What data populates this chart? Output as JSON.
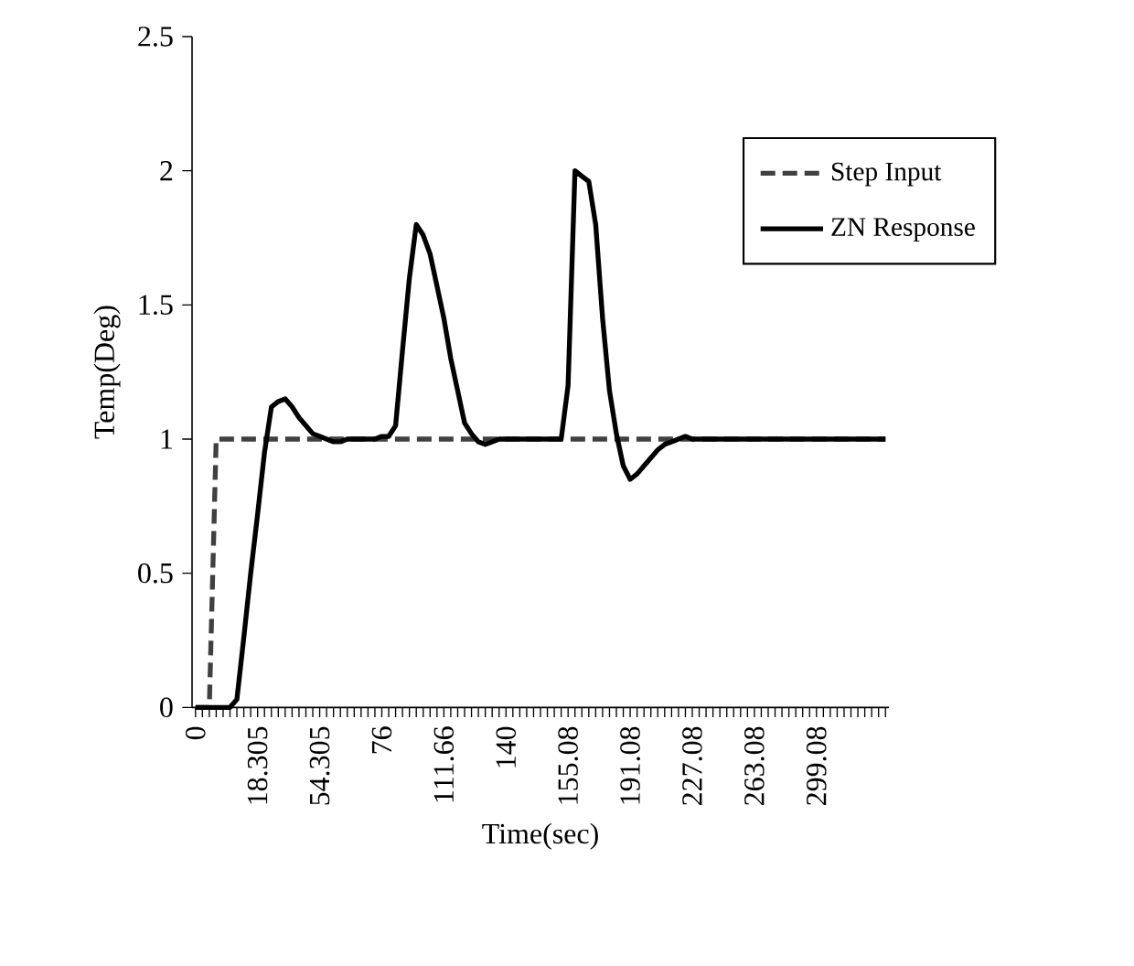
{
  "chart_data": {
    "type": "line",
    "xlabel": "Time(sec)",
    "ylabel": "Temp(Deg)",
    "categories": [
      "0",
      null,
      null,
      null,
      null,
      null,
      null,
      null,
      null,
      "18.305",
      null,
      null,
      null,
      null,
      null,
      null,
      null,
      null,
      "54.305",
      null,
      null,
      null,
      null,
      null,
      null,
      null,
      null,
      "76",
      null,
      null,
      null,
      null,
      null,
      null,
      null,
      null,
      "111.66",
      null,
      null,
      null,
      null,
      null,
      null,
      null,
      null,
      "140",
      null,
      null,
      null,
      null,
      null,
      null,
      null,
      null,
      "155.08",
      null,
      null,
      null,
      null,
      null,
      null,
      null,
      null,
      "191.08",
      null,
      null,
      null,
      null,
      null,
      null,
      null,
      null,
      "227.08",
      null,
      null,
      null,
      null,
      null,
      null,
      null,
      null,
      "263.08",
      null,
      null,
      null,
      null,
      null,
      null,
      null,
      null,
      "299.08",
      null,
      null,
      null,
      null,
      null,
      null,
      null,
      null,
      null,
      null
    ],
    "series": [
      {
        "name": "Step Input",
        "color": "#404040",
        "line_style": "dashed",
        "values": [
          0,
          0,
          0,
          1,
          1,
          1,
          1,
          1,
          1,
          1,
          1,
          1,
          1,
          1,
          1,
          1,
          1,
          1,
          1,
          1,
          1,
          1,
          1,
          1,
          1,
          1,
          1,
          1,
          1,
          1,
          1,
          1,
          1,
          1,
          1,
          1,
          1,
          1,
          1,
          1,
          1,
          1,
          1,
          1,
          1,
          1,
          1,
          1,
          1,
          1,
          1,
          1,
          1,
          1,
          1,
          1,
          1,
          1,
          1,
          1,
          1,
          1,
          1,
          1,
          1,
          1,
          1,
          1,
          1,
          1,
          1,
          1,
          1,
          1,
          1,
          1,
          1,
          1,
          1,
          1,
          1,
          1,
          1,
          1,
          1,
          1,
          1,
          1,
          1,
          1,
          1,
          1,
          1,
          1,
          1,
          1,
          1,
          1,
          1,
          1,
          1
        ]
      },
      {
        "name": "ZN Response",
        "color": "#000000",
        "line_style": "solid",
        "values": [
          0,
          0,
          0,
          0,
          0,
          0,
          0.03,
          0.26,
          0.5,
          0.72,
          0.95,
          1.12,
          1.14,
          1.15,
          1.12,
          1.08,
          1.05,
          1.02,
          1.01,
          1.0,
          0.99,
          0.99,
          1.0,
          1.0,
          1.0,
          1.0,
          1.0,
          1.01,
          1.01,
          1.05,
          1.33,
          1.6,
          1.8,
          1.76,
          1.69,
          1.57,
          1.45,
          1.3,
          1.18,
          1.06,
          1.02,
          0.99,
          0.98,
          0.99,
          1.0,
          1.0,
          1.0,
          1.0,
          1.0,
          1.0,
          1.0,
          1.0,
          1.0,
          1.0,
          1.2,
          2.0,
          1.98,
          1.96,
          1.8,
          1.45,
          1.18,
          1.02,
          0.9,
          0.85,
          0.87,
          0.9,
          0.93,
          0.96,
          0.98,
          0.99,
          1.0,
          1.01,
          1.0,
          1.0,
          1.0,
          1.0,
          1.0,
          1.0,
          1.0,
          1.0,
          1.0,
          1.0,
          1.0,
          1.0,
          1.0,
          1.0,
          1.0,
          1.0,
          1.0,
          1.0,
          1.0,
          1.0,
          1.0,
          1.0,
          1.0,
          1.0,
          1.0,
          1.0,
          1.0,
          1.0,
          1.0
        ]
      }
    ],
    "ylim": [
      0,
      2.5
    ],
    "yticks": [
      0,
      0.5,
      1,
      1.5,
      2,
      2.5
    ],
    "grid": false,
    "legend": "top right",
    "marker": "none"
  }
}
